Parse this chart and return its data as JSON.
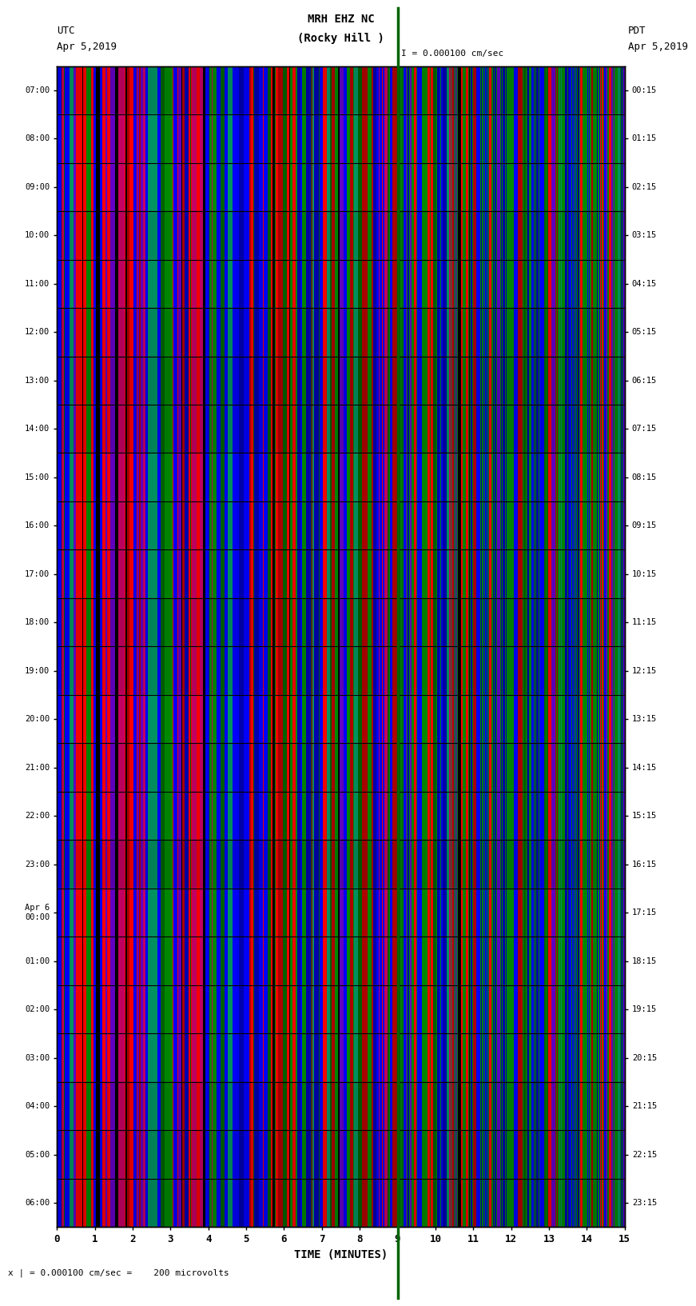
{
  "title_line1": "MRH EHZ NC",
  "title_line2": "(Rocky Hill )",
  "scale_text": "I = 0.000100 cm/sec",
  "bottom_scale_text": "x | = 0.000100 cm/sec =    200 microvolts",
  "utc_label1": "UTC",
  "utc_label2": "Apr 5,2019",
  "pdt_label1": "PDT",
  "pdt_label2": "Apr 5,2019",
  "left_yticks": [
    "07:00",
    "08:00",
    "09:00",
    "10:00",
    "11:00",
    "12:00",
    "13:00",
    "14:00",
    "15:00",
    "16:00",
    "17:00",
    "18:00",
    "19:00",
    "20:00",
    "21:00",
    "22:00",
    "23:00",
    "Apr 6\n00:00",
    "01:00",
    "02:00",
    "03:00",
    "04:00",
    "05:00",
    "06:00"
  ],
  "right_yticks": [
    "00:15",
    "01:15",
    "02:15",
    "03:15",
    "04:15",
    "05:15",
    "06:15",
    "07:15",
    "08:15",
    "09:15",
    "10:15",
    "11:15",
    "12:15",
    "13:15",
    "14:15",
    "15:15",
    "16:15",
    "17:15",
    "18:15",
    "19:15",
    "20:15",
    "21:15",
    "22:15",
    "23:15"
  ],
  "xlabel": "TIME (MINUTES)",
  "xticks": [
    0,
    1,
    2,
    3,
    4,
    5,
    6,
    7,
    8,
    9,
    10,
    11,
    12,
    13,
    14,
    15
  ],
  "xlim": [
    0,
    15
  ],
  "green_line_x": 9.0,
  "fig_width": 8.5,
  "fig_height": 16.13,
  "n_rows": 24,
  "n_cols": 900,
  "seed": 12345
}
